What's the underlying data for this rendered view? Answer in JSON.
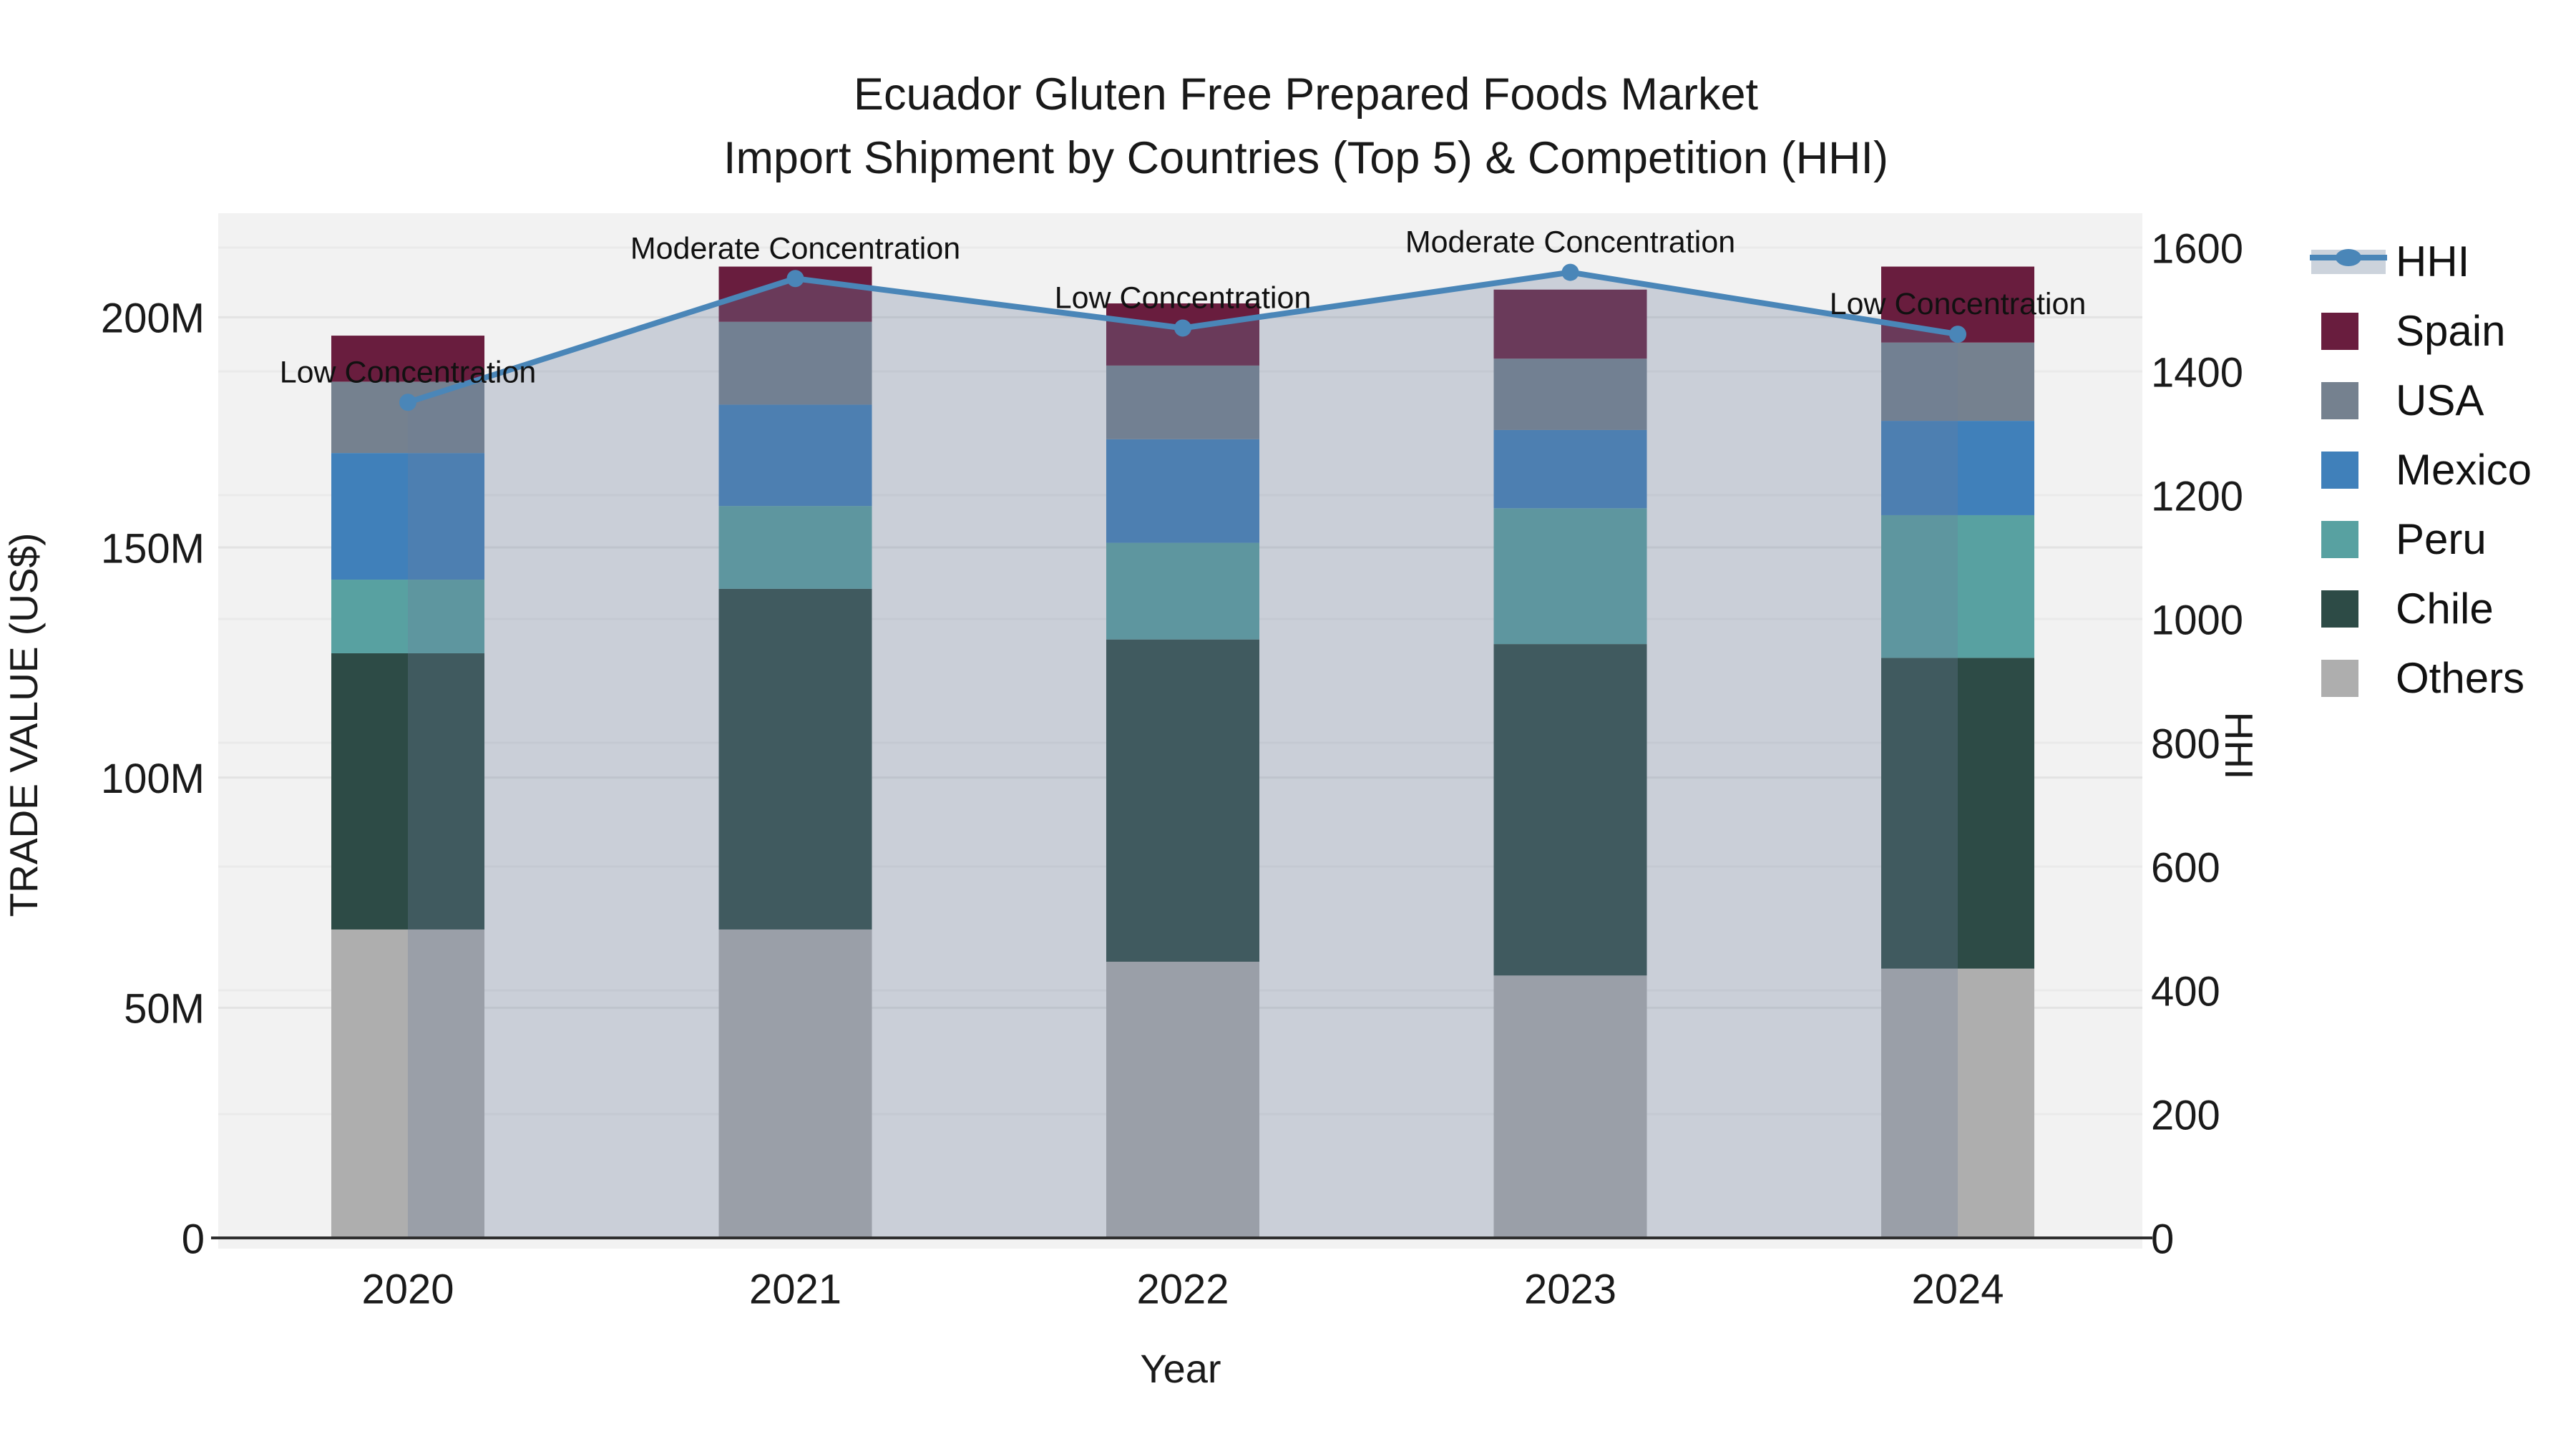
{
  "title": {
    "line1": "Ecuador Gluten Free Prepared Foods Market",
    "line2": "Import Shipment by Countries (Top 5) & Competition (HHI)"
  },
  "chart_data": {
    "type": "bar+line",
    "title": "Ecuador Gluten Free Prepared Foods Market — Import Shipment by Countries (Top 5) & Competition (HHI)",
    "xlabel": "Year",
    "ylabel_left": "TRADE VALUE (US$)",
    "ylabel_right": "HHI",
    "categories": [
      "2020",
      "2021",
      "2022",
      "2023",
      "2024"
    ],
    "bar_series_bottom_to_top": [
      {
        "name": "Others",
        "color": "#aeaeae",
        "values_musd": [
          67,
          67,
          60,
          57,
          58.5
        ]
      },
      {
        "name": "Chile",
        "color": "#2d4b46",
        "values_musd": [
          60,
          74,
          70,
          72,
          67.5
        ]
      },
      {
        "name": "Peru",
        "color": "#58a1a1",
        "values_musd": [
          16,
          18,
          21,
          29.5,
          31
        ]
      },
      {
        "name": "Mexico",
        "color": "#4080ba",
        "values_musd": [
          27.5,
          22,
          22.5,
          17,
          20.5
        ]
      },
      {
        "name": "USA",
        "color": "#75818f",
        "values_musd": [
          15.5,
          18,
          16,
          15.5,
          17
        ]
      },
      {
        "name": "Spain",
        "color": "#691d3e",
        "values_musd": [
          10,
          12,
          13.5,
          15,
          16.5
        ]
      }
    ],
    "stack_totals_musd": [
      196,
      211,
      203,
      206,
      211
    ],
    "line_series": {
      "name": "HHI",
      "color": "#4a86b8",
      "area_fill": "rgba(108,127,157,0.30)",
      "values": [
        1350,
        1550,
        1470,
        1560,
        1460
      ]
    },
    "annotations": [
      {
        "year": "2020",
        "text": "Low Concentration"
      },
      {
        "year": "2021",
        "text": "Moderate Concentration"
      },
      {
        "year": "2022",
        "text": "Low Concentration"
      },
      {
        "year": "2023",
        "text": "Moderate Concentration"
      },
      {
        "year": "2024",
        "text": "Low Concentration"
      }
    ],
    "y_left": {
      "ticks": [
        0,
        50,
        100,
        150,
        200
      ],
      "labels": [
        "0",
        "50M",
        "100M",
        "150M",
        "200M"
      ],
      "max_musd": 222.5
    },
    "y_right": {
      "ticks": [
        0,
        200,
        400,
        600,
        800,
        1000,
        1200,
        1400,
        1600
      ],
      "labels": [
        "0",
        "200",
        "400",
        "600",
        "800",
        "1000",
        "1200",
        "1400",
        "1600"
      ],
      "max": 1656
    },
    "legend_top_to_bottom": [
      {
        "label": "HHI",
        "type": "line",
        "color": "#4a86b8"
      },
      {
        "label": "Spain",
        "type": "square",
        "color": "#691d3e"
      },
      {
        "label": "USA",
        "type": "square",
        "color": "#75818f"
      },
      {
        "label": "Mexico",
        "type": "square",
        "color": "#4080ba"
      },
      {
        "label": "Peru",
        "type": "square",
        "color": "#58a1a1"
      },
      {
        "label": "Chile",
        "type": "square",
        "color": "#2d4b46"
      },
      {
        "label": "Others",
        "type": "square",
        "color": "#aeaeae"
      }
    ],
    "grid": true,
    "legend_position": "right",
    "plot_background": "#f2f2f2"
  }
}
